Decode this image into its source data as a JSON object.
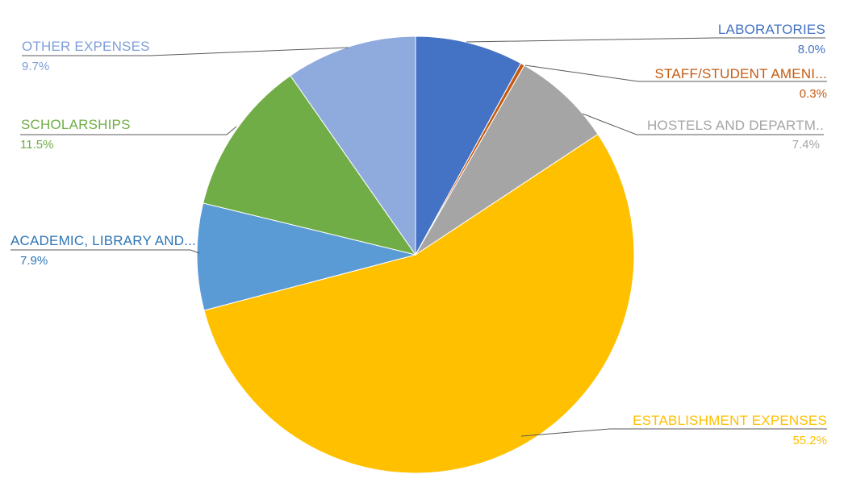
{
  "chart_data": {
    "type": "pie",
    "title": "",
    "unit": "%",
    "start_angle_deg": 0,
    "direction": "clockwise",
    "legend_position": "none",
    "labels_style": "outside-callout-with-leader-lines",
    "slices": [
      {
        "label": "LABORATORIES",
        "value": 8.0,
        "pct_text": "8.0%",
        "color": "#4472C4",
        "label_color": "#4472C4"
      },
      {
        "label": "STAFF/STUDENT AMENI...",
        "value": 0.3,
        "pct_text": "0.3%",
        "color": "#C55A11",
        "label_color": "#C55A11"
      },
      {
        "label": "HOSTELS AND DEPARTM..",
        "value": 7.4,
        "pct_text": "7.4%",
        "color": "#A5A5A5",
        "label_color": "#A5A5A5"
      },
      {
        "label": "ESTABLISHMENT EXPENSES",
        "value": 55.2,
        "pct_text": "55.2%",
        "color": "#FFC000",
        "label_color": "#FFC000"
      },
      {
        "label": "ACADEMIC, LIBRARY AND...",
        "value": 7.9,
        "pct_text": "7.9%",
        "color": "#5B9BD5",
        "label_color": "#2E75B6"
      },
      {
        "label": "SCHOLARSHIPS",
        "value": 11.5,
        "pct_text": "11.5%",
        "color": "#70AD47",
        "label_color": "#70AD47"
      },
      {
        "label": "OTHER EXPENSES",
        "value": 9.7,
        "pct_text": "9.7%",
        "color": "#8FAADC",
        "label_color": "#7F9FD8"
      }
    ]
  }
}
